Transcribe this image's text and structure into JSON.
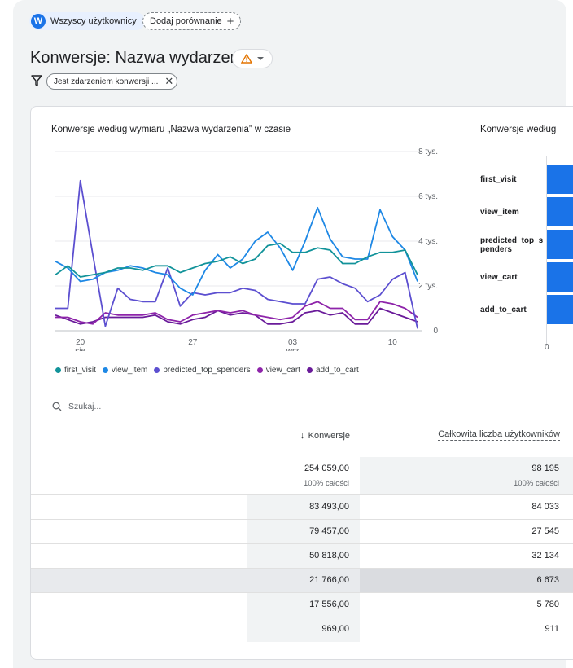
{
  "header": {
    "user_chip": {
      "initial": "W",
      "label": "Wszyscy użytkownicy"
    },
    "add_comparison_label": "Dodaj porównanie",
    "title": "Konwersje: Nazwa wydarzenia",
    "filter_chip_label": "Jest zdarzeniem konwersji ..."
  },
  "chart_data": [
    {
      "type": "line",
      "title": "Konwersje według wymiaru „Nazwa wydarzenia” w czasie",
      "y_ticks": [
        "8 tys.",
        "6 tys.",
        "4 tys.",
        "2 tys.",
        "0"
      ],
      "ylim": [
        0,
        8000
      ],
      "x_ticks": [
        {
          "day": "20",
          "month": "sie"
        },
        {
          "day": "27",
          "month": ""
        },
        {
          "day": "03",
          "month": "wrz"
        },
        {
          "day": "10",
          "month": ""
        }
      ],
      "grid": true,
      "legend_position": "bottom",
      "series": [
        {
          "name": "first_visit",
          "color": "#12939a",
          "values": [
            2500,
            2900,
            2400,
            2500,
            2600,
            2800,
            2800,
            2700,
            2900,
            2900,
            2600,
            2800,
            3000,
            3100,
            3300,
            3000,
            3200,
            3800,
            3900,
            3500,
            3500,
            3700,
            3600,
            3000,
            3000,
            3300,
            3500,
            3500,
            3600,
            2500
          ]
        },
        {
          "name": "view_item",
          "color": "#1e88e5",
          "values": [
            3100,
            2800,
            2200,
            2300,
            2600,
            2700,
            2900,
            2800,
            2600,
            2500,
            1900,
            1600,
            2700,
            3400,
            2800,
            3200,
            4000,
            4400,
            3700,
            2700,
            4000,
            5500,
            4100,
            3300,
            3200,
            3200,
            5400,
            4200,
            3600,
            2200
          ]
        },
        {
          "name": "predicted_top_spenders",
          "color": "#5c4fd0",
          "values": [
            1000,
            1000,
            6700,
            3400,
            200,
            1900,
            1400,
            1300,
            1300,
            2800,
            1100,
            1700,
            1600,
            1700,
            1700,
            1900,
            1800,
            1400,
            1300,
            1200,
            1200,
            2300,
            2400,
            2100,
            1900,
            1300,
            1600,
            2300,
            2600,
            100
          ]
        },
        {
          "name": "view_cart",
          "color": "#8e24aa",
          "values": [
            600,
            600,
            400,
            300,
            800,
            700,
            700,
            700,
            800,
            500,
            400,
            700,
            800,
            900,
            800,
            900,
            700,
            600,
            500,
            600,
            1100,
            1300,
            1000,
            1000,
            500,
            500,
            1300,
            1200,
            1000,
            600
          ]
        },
        {
          "name": "add_to_cart",
          "color": "#6a1b9a",
          "values": [
            700,
            500,
            300,
            400,
            600,
            600,
            600,
            600,
            700,
            400,
            300,
            500,
            600,
            900,
            700,
            800,
            700,
            300,
            300,
            400,
            800,
            900,
            700,
            800,
            300,
            300,
            1000,
            800,
            600,
            400
          ]
        }
      ]
    },
    {
      "type": "bar",
      "title": "Konwersje według",
      "categories": [
        "first_visit",
        "view_item",
        "predicted_top_spenders",
        "view_cart",
        "add_to_cart"
      ],
      "category_labels": [
        "first_visit",
        "view_item",
        "predicted_top_s penders",
        "view_cart",
        "add_to_cart"
      ],
      "x_tick": "0",
      "color": "#1a73e8"
    }
  ],
  "table": {
    "search_placeholder": "Szukaj...",
    "columns": [
      "Konwersje",
      "Całkowita liczba użytkowników"
    ],
    "totals": {
      "conversions": "254 059,00",
      "conversions_pct": "100% całości",
      "users": "98 195",
      "users_pct": "100% całości"
    },
    "rows": [
      {
        "conversions": "83 493,00",
        "users": "84 033"
      },
      {
        "conversions": "79 457,00",
        "users": "27 545"
      },
      {
        "conversions": "50 818,00",
        "users": "32 134"
      },
      {
        "conversions": "21 766,00",
        "users": "6 673"
      },
      {
        "conversions": "17 556,00",
        "users": "5 780"
      },
      {
        "conversions": "969,00",
        "users": "911"
      }
    ]
  }
}
